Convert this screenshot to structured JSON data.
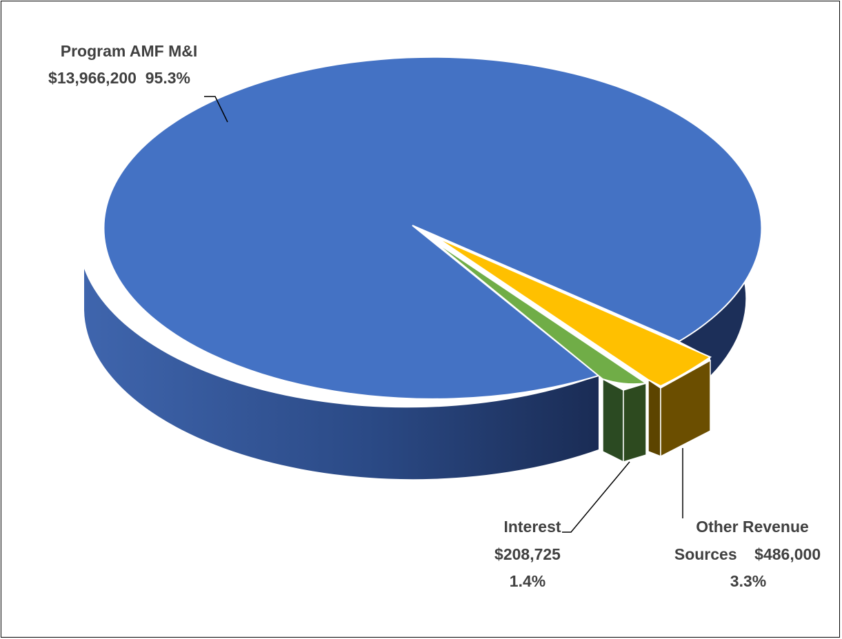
{
  "chart_data": {
    "type": "pie",
    "style": "3d",
    "title": "",
    "slices": [
      {
        "name": "Program AMF M&I",
        "value": 13966200,
        "percent": 95.3,
        "color": "#4472c4",
        "label_lines": [
          "Program AMF M&I",
          "$13,966,200  95.3%"
        ]
      },
      {
        "name": "Interest",
        "value": 208725,
        "percent": 1.4,
        "color": "#70ad47",
        "label_lines": [
          "Interest",
          "$208,725",
          "1.4%"
        ]
      },
      {
        "name": "Other Revenue Sources",
        "value": 486000,
        "percent": 3.3,
        "color": "#ffc000",
        "label_lines": [
          "Other Revenue",
          "Sources    $486,000",
          "3.3%"
        ]
      }
    ]
  }
}
